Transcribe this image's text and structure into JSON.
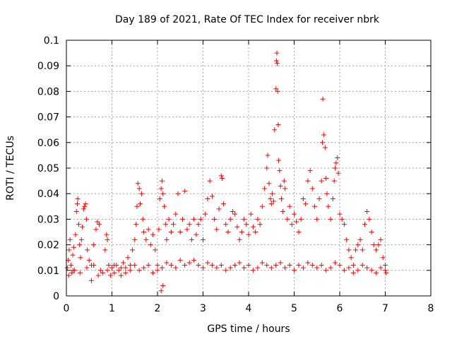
{
  "chart_data": {
    "type": "scatter",
    "title": "Day 189 of 2021, Rate Of TEC Index for receiver nbrk",
    "xlabel": "GPS time / hours",
    "ylabel": "ROTI / TECUs",
    "xlim": [
      0,
      8
    ],
    "ylim": [
      0,
      0.1
    ],
    "x_ticks": [
      0,
      1,
      2,
      3,
      4,
      5,
      6,
      7,
      8
    ],
    "x_tick_labels": [
      "0",
      "1",
      "2",
      "3",
      "4",
      "5",
      "6",
      "7",
      "8"
    ],
    "y_ticks": [
      0,
      0.01,
      0.02,
      0.03,
      0.04,
      0.05,
      0.06,
      0.07,
      0.08,
      0.09,
      0.1
    ],
    "y_tick_labels": [
      "0",
      "0.01",
      "0.02",
      "0.03",
      "0.04",
      "0.05",
      "0.06",
      "0.07",
      "0.08",
      "0.09",
      "0.1"
    ],
    "grid": true,
    "marker": "+",
    "marker_color": "#ff0000",
    "series": [
      {
        "name": "ROTI",
        "points": [
          [
            0.02,
            0.011
          ],
          [
            0.04,
            0.014
          ],
          [
            0.06,
            0.018
          ],
          [
            0.08,
            0.022
          ],
          [
            0.1,
            0.012
          ],
          [
            0.12,
            0.009
          ],
          [
            0.14,
            0.016
          ],
          [
            0.16,
            0.019
          ],
          [
            0.18,
            0.01
          ],
          [
            0.2,
            0.024
          ],
          [
            0.22,
            0.033
          ],
          [
            0.24,
            0.036
          ],
          [
            0.25,
            0.038
          ],
          [
            0.27,
            0.028
          ],
          [
            0.29,
            0.02
          ],
          [
            0.31,
            0.015
          ],
          [
            0.33,
            0.022
          ],
          [
            0.35,
            0.027
          ],
          [
            0.38,
            0.034
          ],
          [
            0.4,
            0.035
          ],
          [
            0.42,
            0.036
          ],
          [
            0.44,
            0.03
          ],
          [
            0.46,
            0.018
          ],
          [
            0.5,
            0.014
          ],
          [
            0.55,
            0.012
          ],
          [
            0.6,
            0.02
          ],
          [
            0.65,
            0.026
          ],
          [
            0.68,
            0.029
          ],
          [
            0.72,
            0.028
          ],
          [
            0.75,
            0.01
          ],
          [
            0.8,
            0.009
          ],
          [
            0.85,
            0.018
          ],
          [
            0.88,
            0.024
          ],
          [
            0.9,
            0.022
          ],
          [
            0.93,
            0.012
          ],
          [
            0.97,
            0.008
          ],
          [
            1.0,
            0.011
          ],
          [
            1.05,
            0.009
          ],
          [
            1.1,
            0.012
          ],
          [
            1.15,
            0.01
          ],
          [
            1.2,
            0.008
          ],
          [
            1.25,
            0.013
          ],
          [
            1.3,
            0.011
          ],
          [
            1.35,
            0.015
          ],
          [
            1.4,
            0.012
          ],
          [
            1.45,
            0.018
          ],
          [
            1.5,
            0.022
          ],
          [
            1.53,
            0.028
          ],
          [
            1.55,
            0.035
          ],
          [
            1.57,
            0.044
          ],
          [
            1.6,
            0.042
          ],
          [
            1.62,
            0.036
          ],
          [
            1.65,
            0.04
          ],
          [
            1.68,
            0.03
          ],
          [
            1.7,
            0.025
          ],
          [
            1.75,
            0.022
          ],
          [
            1.8,
            0.026
          ],
          [
            1.85,
            0.02
          ],
          [
            1.9,
            0.024
          ],
          [
            1.95,
            0.018
          ],
          [
            2.0,
            0.012
          ],
          [
            2.03,
            0.026
          ],
          [
            2.05,
            0.038
          ],
          [
            2.08,
            0.042
          ],
          [
            2.1,
            0.045
          ],
          [
            2.12,
            0.04
          ],
          [
            2.15,
            0.035
          ],
          [
            2.18,
            0.028
          ],
          [
            2.2,
            0.022
          ],
          [
            2.25,
            0.03
          ],
          [
            2.3,
            0.025
          ],
          [
            2.35,
            0.028
          ],
          [
            2.4,
            0.032
          ],
          [
            2.45,
            0.04
          ],
          [
            2.5,
            0.025
          ],
          [
            2.55,
            0.03
          ],
          [
            2.6,
            0.041
          ],
          [
            2.65,
            0.026
          ],
          [
            2.7,
            0.028
          ],
          [
            2.75,
            0.022
          ],
          [
            2.8,
            0.03
          ],
          [
            2.85,
            0.024
          ],
          [
            2.9,
            0.028
          ],
          [
            2.95,
            0.03
          ],
          [
            3.0,
            0.022
          ],
          [
            3.05,
            0.032
          ],
          [
            3.1,
            0.038
          ],
          [
            3.15,
            0.045
          ],
          [
            3.2,
            0.039
          ],
          [
            3.25,
            0.03
          ],
          [
            3.3,
            0.026
          ],
          [
            3.35,
            0.034
          ],
          [
            3.4,
            0.047
          ],
          [
            3.42,
            0.046
          ],
          [
            3.45,
            0.036
          ],
          [
            3.5,
            0.028
          ],
          [
            3.55,
            0.025
          ],
          [
            3.6,
            0.03
          ],
          [
            3.65,
            0.033
          ],
          [
            3.7,
            0.032
          ],
          [
            3.75,
            0.027
          ],
          [
            3.8,
            0.022
          ],
          [
            3.85,
            0.025
          ],
          [
            3.9,
            0.03
          ],
          [
            3.95,
            0.028
          ],
          [
            4.0,
            0.024
          ],
          [
            4.05,
            0.032
          ],
          [
            4.1,
            0.027
          ],
          [
            4.15,
            0.025
          ],
          [
            4.2,
            0.03
          ],
          [
            4.25,
            0.028
          ],
          [
            4.3,
            0.035
          ],
          [
            4.35,
            0.042
          ],
          [
            4.4,
            0.05
          ],
          [
            4.42,
            0.055
          ],
          [
            4.45,
            0.044
          ],
          [
            4.48,
            0.038
          ],
          [
            4.5,
            0.036
          ],
          [
            4.52,
            0.04
          ],
          [
            4.55,
            0.037
          ],
          [
            4.57,
            0.065
          ],
          [
            4.6,
            0.081
          ],
          [
            4.61,
            0.092
          ],
          [
            4.62,
            0.095
          ],
          [
            4.63,
            0.091
          ],
          [
            4.64,
            0.08
          ],
          [
            4.65,
            0.067
          ],
          [
            4.66,
            0.053
          ],
          [
            4.68,
            0.049
          ],
          [
            4.7,
            0.043
          ],
          [
            4.72,
            0.038
          ],
          [
            4.75,
            0.033
          ],
          [
            4.78,
            0.045
          ],
          [
            4.8,
            0.042
          ],
          [
            4.85,
            0.03
          ],
          [
            4.9,
            0.035
          ],
          [
            4.95,
            0.028
          ],
          [
            5.0,
            0.032
          ],
          [
            5.05,
            0.029
          ],
          [
            5.1,
            0.025
          ],
          [
            5.15,
            0.03
          ],
          [
            5.2,
            0.038
          ],
          [
            5.25,
            0.036
          ],
          [
            5.3,
            0.045
          ],
          [
            5.35,
            0.049
          ],
          [
            5.4,
            0.042
          ],
          [
            5.45,
            0.035
          ],
          [
            5.5,
            0.03
          ],
          [
            5.55,
            0.038
          ],
          [
            5.6,
            0.045
          ],
          [
            5.62,
            0.06
          ],
          [
            5.63,
            0.077
          ],
          [
            5.65,
            0.063
          ],
          [
            5.68,
            0.058
          ],
          [
            5.7,
            0.046
          ],
          [
            5.72,
            0.04
          ],
          [
            5.75,
            0.035
          ],
          [
            5.8,
            0.03
          ],
          [
            5.85,
            0.038
          ],
          [
            5.88,
            0.045
          ],
          [
            5.9,
            0.05
          ],
          [
            5.92,
            0.052
          ],
          [
            5.95,
            0.054
          ],
          [
            5.97,
            0.048
          ],
          [
            6.0,
            0.032
          ],
          [
            6.05,
            0.03
          ],
          [
            6.1,
            0.028
          ],
          [
            6.15,
            0.022
          ],
          [
            6.2,
            0.018
          ],
          [
            6.25,
            0.015
          ],
          [
            6.3,
            0.012
          ],
          [
            6.35,
            0.018
          ],
          [
            6.4,
            0.02
          ],
          [
            6.45,
            0.022
          ],
          [
            6.5,
            0.018
          ],
          [
            6.55,
            0.028
          ],
          [
            6.6,
            0.033
          ],
          [
            6.65,
            0.03
          ],
          [
            6.7,
            0.025
          ],
          [
            6.75,
            0.02
          ],
          [
            6.8,
            0.018
          ],
          [
            6.85,
            0.02
          ],
          [
            6.9,
            0.022
          ],
          [
            6.95,
            0.015
          ],
          [
            7.0,
            0.012
          ],
          [
            7.02,
            0.009
          ],
          [
            0.05,
            0.008
          ],
          [
            0.15,
            0.01
          ],
          [
            0.3,
            0.009
          ],
          [
            0.45,
            0.011
          ],
          [
            0.6,
            0.012
          ],
          [
            0.7,
            0.008
          ],
          [
            0.9,
            0.01
          ],
          [
            1.05,
            0.012
          ],
          [
            1.2,
            0.011
          ],
          [
            1.3,
            0.009
          ],
          [
            1.4,
            0.01
          ],
          [
            1.5,
            0.012
          ],
          [
            1.6,
            0.01
          ],
          [
            1.7,
            0.011
          ],
          [
            1.8,
            0.012
          ],
          [
            1.9,
            0.009
          ],
          [
            2.0,
            0.01
          ],
          [
            2.1,
            0.011
          ],
          [
            2.2,
            0.013
          ],
          [
            2.3,
            0.012
          ],
          [
            2.4,
            0.011
          ],
          [
            2.5,
            0.014
          ],
          [
            2.6,
            0.012
          ],
          [
            2.7,
            0.013
          ],
          [
            2.8,
            0.014
          ],
          [
            2.9,
            0.012
          ],
          [
            3.0,
            0.011
          ],
          [
            3.1,
            0.013
          ],
          [
            3.2,
            0.012
          ],
          [
            3.3,
            0.011
          ],
          [
            3.4,
            0.012
          ],
          [
            3.5,
            0.01
          ],
          [
            3.6,
            0.011
          ],
          [
            3.7,
            0.012
          ],
          [
            3.8,
            0.013
          ],
          [
            3.9,
            0.011
          ],
          [
            4.0,
            0.012
          ],
          [
            4.1,
            0.01
          ],
          [
            4.2,
            0.011
          ],
          [
            4.3,
            0.013
          ],
          [
            4.4,
            0.012
          ],
          [
            4.5,
            0.011
          ],
          [
            4.6,
            0.012
          ],
          [
            4.7,
            0.013
          ],
          [
            4.8,
            0.011
          ],
          [
            4.9,
            0.012
          ],
          [
            5.0,
            0.01
          ],
          [
            5.1,
            0.012
          ],
          [
            5.2,
            0.011
          ],
          [
            5.3,
            0.013
          ],
          [
            5.4,
            0.012
          ],
          [
            5.5,
            0.011
          ],
          [
            5.6,
            0.012
          ],
          [
            5.7,
            0.01
          ],
          [
            5.8,
            0.011
          ],
          [
            5.9,
            0.013
          ],
          [
            6.0,
            0.012
          ],
          [
            6.1,
            0.01
          ],
          [
            6.2,
            0.011
          ],
          [
            6.3,
            0.009
          ],
          [
            6.4,
            0.01
          ],
          [
            6.5,
            0.012
          ],
          [
            6.6,
            0.011
          ],
          [
            6.7,
            0.01
          ],
          [
            6.8,
            0.009
          ],
          [
            6.9,
            0.011
          ],
          [
            7.0,
            0.01
          ],
          [
            2.08,
            0.002
          ],
          [
            2.12,
            0.004
          ],
          [
            0.55,
            0.006
          ]
        ]
      }
    ]
  }
}
